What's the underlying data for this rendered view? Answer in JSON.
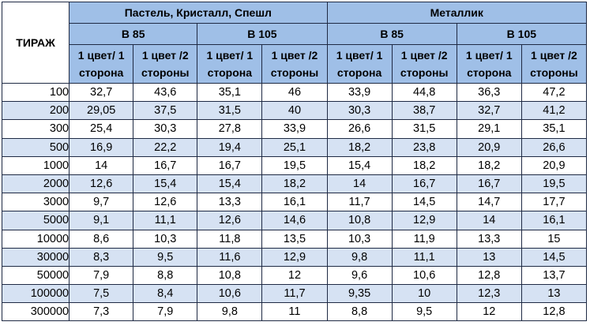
{
  "table": {
    "corner_label": "ТИРАЖ",
    "groups": [
      "Пастель, Кристалл, Спешл",
      "Металлик"
    ],
    "subgroups": [
      "B 85",
      "B 105",
      "B 85",
      "B 105"
    ],
    "columns": [
      {
        "line1": "1 цвет/ 1",
        "line2": "сторона"
      },
      {
        "line1": "1 цвет /2",
        "line2": "стороны"
      },
      {
        "line1": "1 цвет/ 1",
        "line2": "сторона"
      },
      {
        "line1": "1 цвет /2",
        "line2": "стороны"
      },
      {
        "line1": "1 цвет/ 1",
        "line2": "сторона"
      },
      {
        "line1": "1 цвет /2",
        "line2": "стороны"
      },
      {
        "line1": "1 цвет/ 1",
        "line2": "сторона"
      },
      {
        "line1": "1 цвет /2",
        "line2": "стороны"
      }
    ],
    "rows": [
      {
        "qty": "100",
        "values": [
          "32,7",
          "43,6",
          "35,1",
          "46",
          "33,9",
          "44,8",
          "36,3",
          "47,2"
        ]
      },
      {
        "qty": "200",
        "values": [
          "29,05",
          "37,5",
          "31,5",
          "40",
          "30,3",
          "38,7",
          "32,7",
          "41,2"
        ]
      },
      {
        "qty": "300",
        "values": [
          "25,4",
          "30,3",
          "27,8",
          "33,9",
          "26,6",
          "31,5",
          "29,1",
          "35,1"
        ]
      },
      {
        "qty": "500",
        "values": [
          "16,9",
          "22,2",
          "19,4",
          "25,1",
          "18,2",
          "23,8",
          "20,9",
          "26,6"
        ]
      },
      {
        "qty": "1000",
        "values": [
          "14",
          "16,7",
          "16,7",
          "19,5",
          "15,4",
          "18,2",
          "18,2",
          "20,9"
        ]
      },
      {
        "qty": "2000",
        "values": [
          "12,6",
          "15,4",
          "15,4",
          "18,2",
          "14",
          "16,7",
          "16,7",
          "19,5"
        ]
      },
      {
        "qty": "3000",
        "values": [
          "9,7",
          "12,6",
          "13,3",
          "16,1",
          "11,7",
          "14,5",
          "14,7",
          "17,7"
        ]
      },
      {
        "qty": "5000",
        "values": [
          "9,1",
          "11,1",
          "12,6",
          "14,6",
          "10,8",
          "12,9",
          "14",
          "16,1"
        ]
      },
      {
        "qty": "10000",
        "values": [
          "8,6",
          "10,3",
          "11,8",
          "13,5",
          "10,3",
          "11,9",
          "13,3",
          "15"
        ]
      },
      {
        "qty": "30000",
        "values": [
          "8,3",
          "9,5",
          "11,6",
          "12,9",
          "9,8",
          "11,1",
          "13",
          "14,5"
        ]
      },
      {
        "qty": "50000",
        "values": [
          "7,9",
          "8,8",
          "10,8",
          "12",
          "9,6",
          "10,6",
          "12,8",
          "13,7"
        ]
      },
      {
        "qty": "100000",
        "values": [
          "7,5",
          "8,4",
          "10,6",
          "11,7",
          "9,35",
          "10",
          "12,3",
          "13"
        ]
      },
      {
        "qty": "300000",
        "values": [
          "7,3",
          "7,9",
          "9,8",
          "11",
          "8,8",
          "9,5",
          "12",
          "12,8"
        ]
      }
    ]
  }
}
